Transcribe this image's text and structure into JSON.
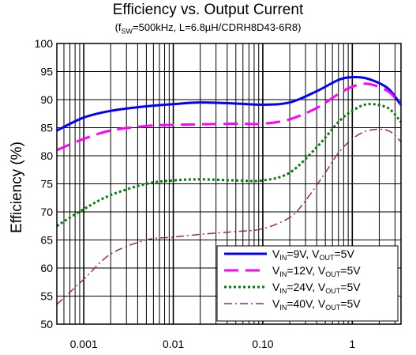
{
  "chart_data": {
    "type": "line",
    "title": "Efficiency vs. Output Current",
    "subtitle": "(fₛᵂ=500kHz, L=6.8µH/CDRH8D43-6R8)",
    "subtitle_parts": [
      "(f",
      "SW",
      "=500kHz, L=6.8µH/CDRH8D43-6R8)"
    ],
    "xlabel": "",
    "ylabel": "Efficiency (%)",
    "xscale": "log",
    "xlim": [
      0.0005,
      3.5
    ],
    "ylim": [
      50,
      100
    ],
    "xticks": [
      0.001,
      0.01,
      0.1,
      1
    ],
    "xtick_labels": [
      "0.001",
      "0.01",
      "0.10",
      "1"
    ],
    "yticks": [
      50,
      55,
      60,
      65,
      70,
      75,
      80,
      85,
      90,
      95,
      100
    ],
    "grid": true,
    "legend_position": "bottom-right",
    "series": [
      {
        "name": "VIN=9V, VOUT=5V",
        "label_parts": [
          "V",
          "IN",
          "=9V, V",
          "OUT",
          "=5V"
        ],
        "color": "#0000ff",
        "dash": "solid",
        "x": [
          0.0005,
          0.001,
          0.002,
          0.005,
          0.01,
          0.02,
          0.05,
          0.1,
          0.2,
          0.4,
          0.7,
          1.0,
          1.5,
          2.5,
          3.5
        ],
        "y": [
          84.5,
          86.8,
          88.0,
          88.8,
          89.2,
          89.5,
          89.3,
          89.1,
          89.5,
          91.5,
          93.5,
          94.0,
          93.7,
          92.0,
          89.0
        ]
      },
      {
        "name": "VIN=12V, VOUT=5V",
        "label_parts": [
          "V",
          "IN",
          "=12V, V",
          "OUT",
          "=5V"
        ],
        "color": "#ff00ff",
        "dash": "long-dash",
        "x": [
          0.0005,
          0.001,
          0.002,
          0.005,
          0.01,
          0.02,
          0.05,
          0.1,
          0.2,
          0.4,
          0.7,
          1.0,
          1.5,
          2.5,
          3.5
        ],
        "y": [
          81.0,
          83.0,
          84.5,
          85.3,
          85.5,
          85.6,
          85.7,
          85.7,
          86.5,
          88.5,
          91.0,
          92.3,
          92.8,
          91.5,
          89.0
        ]
      },
      {
        "name": "VIN=24V, VOUT=5V",
        "label_parts": [
          "V",
          "IN",
          "=24V, V",
          "OUT",
          "=5V"
        ],
        "color": "#008000",
        "dash": "dotted",
        "x": [
          0.0005,
          0.001,
          0.002,
          0.005,
          0.01,
          0.02,
          0.05,
          0.1,
          0.2,
          0.4,
          0.7,
          1.0,
          1.5,
          2.5,
          3.5
        ],
        "y": [
          67.5,
          70.5,
          73.0,
          75.0,
          75.6,
          75.8,
          75.6,
          75.6,
          77.0,
          81.5,
          86.0,
          88.0,
          89.2,
          88.5,
          86.0
        ]
      },
      {
        "name": "VIN=40V, VOUT=5V",
        "label_parts": [
          "V",
          "IN",
          "=40V, V",
          "OUT",
          "=5V"
        ],
        "color": "#993333",
        "dash": "dash-dot",
        "x": [
          0.0005,
          0.001,
          0.002,
          0.005,
          0.01,
          0.02,
          0.05,
          0.1,
          0.2,
          0.3,
          0.5,
          0.7,
          1.0,
          1.5,
          2.5,
          3.5
        ],
        "y": [
          53.5,
          58.0,
          62.5,
          65.0,
          65.5,
          66.0,
          66.5,
          67.0,
          69.0,
          72.0,
          77.0,
          80.5,
          83.0,
          84.5,
          84.5,
          82.5
        ]
      }
    ]
  }
}
